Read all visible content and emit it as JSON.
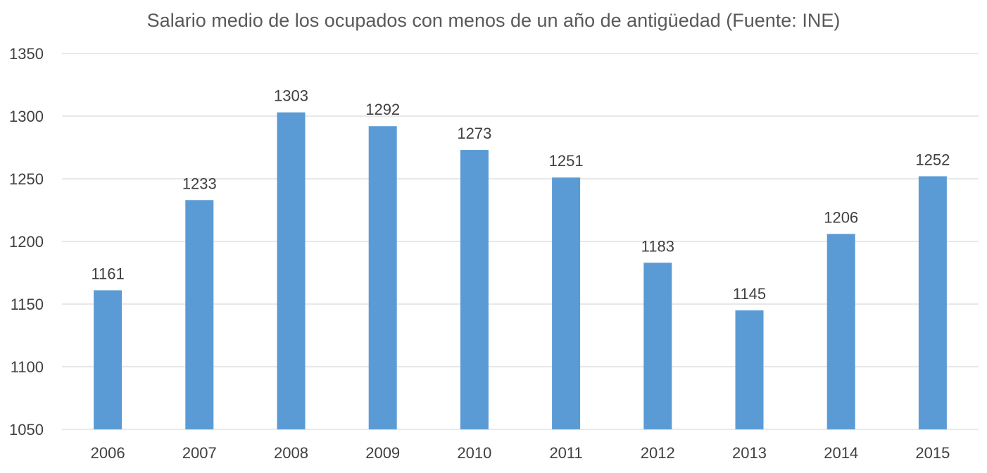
{
  "chart_data": {
    "type": "bar",
    "title": "Salario medio de los ocupados con menos de un año de antigüedad (Fuente: INE)",
    "xlabel": "",
    "ylabel": "",
    "categories": [
      "2006",
      "2007",
      "2008",
      "2009",
      "2010",
      "2011",
      "2012",
      "2013",
      "2014",
      "2015"
    ],
    "values": [
      1161,
      1233,
      1303,
      1292,
      1273,
      1251,
      1183,
      1145,
      1206,
      1252
    ],
    "ylim": [
      1050,
      1350
    ],
    "yticks": [
      1050,
      1100,
      1150,
      1200,
      1250,
      1300,
      1350
    ],
    "grid": true,
    "data_labels": true,
    "bar_color": "#5B9BD5",
    "grid_color": "#D9D9D9"
  }
}
